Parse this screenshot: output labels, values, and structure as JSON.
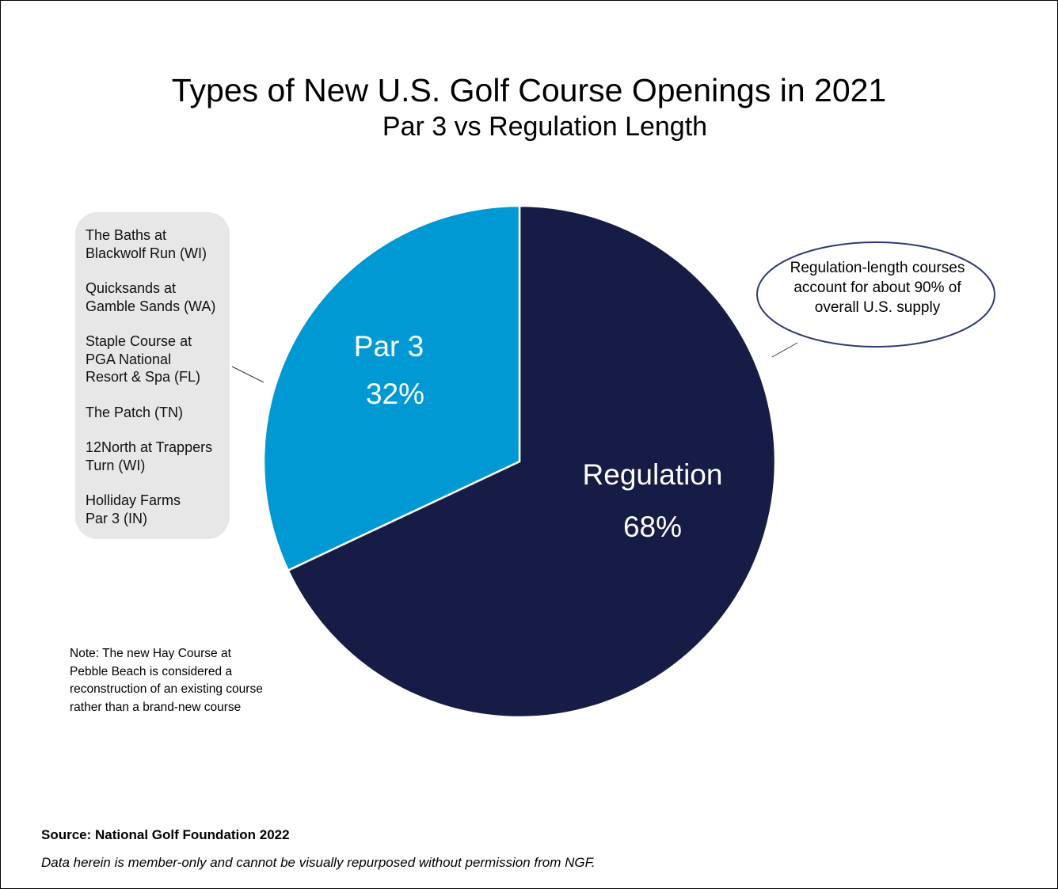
{
  "chart_data": {
    "type": "pie",
    "title": "Types of New U.S. Golf Course Openings in 2021",
    "subtitle": "Par 3 vs Regulation Length",
    "slices": [
      {
        "label": "Regulation",
        "value": 68,
        "value_label": "68%",
        "color": "#161c45"
      },
      {
        "label": "Par 3",
        "value": 32,
        "value_label": "32%",
        "color": "#0099d4"
      }
    ],
    "slice_separator_color": "#ffffff"
  },
  "par3_courses": [
    "The Baths at\nBlackwolf Run (WI)",
    "Quicksands at\nGamble Sands (WA)",
    "Staple Course at\nPGA National\nResort & Spa (FL)",
    "The Patch (TN)",
    "12North at Trappers\nTurn (WI)",
    "Holliday Farms\nPar 3 (IN)"
  ],
  "callout": {
    "text": "Regulation-length courses account for about 90% of overall U.S. supply",
    "border_color": "#2e3a73"
  },
  "note": "Note: The new Hay Course at\nPebble Beach is considered a\nreconstruction of an existing course\nrather than a brand-new course",
  "source": "Source: National Golf Foundation 2022",
  "disclaimer": "Data herein is member-only and cannot be visually repurposed without permission from NGF."
}
